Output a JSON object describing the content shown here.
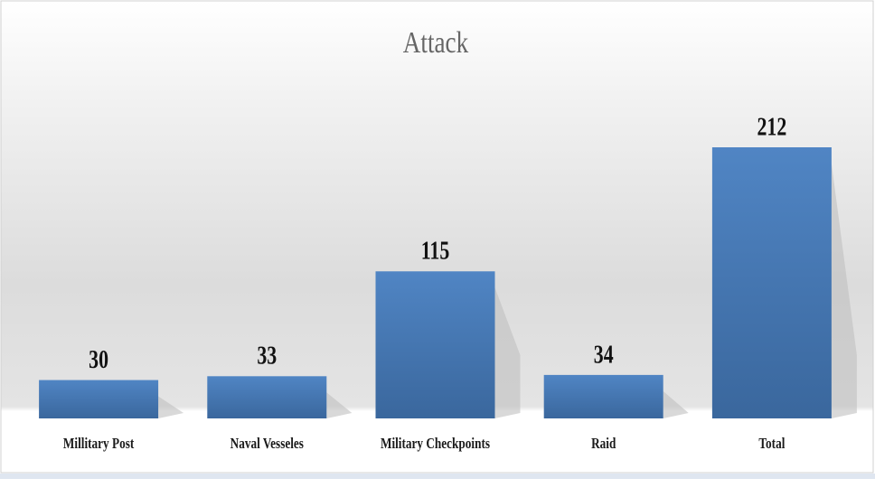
{
  "chart_data": {
    "type": "bar",
    "title": "Attack",
    "categories": [
      "Millitary Post",
      "Naval Vesseles",
      "Military Checkpoints",
      "Raid",
      "Total"
    ],
    "values": [
      30,
      33,
      115,
      34,
      212
    ],
    "color": "#4a7ebb"
  }
}
